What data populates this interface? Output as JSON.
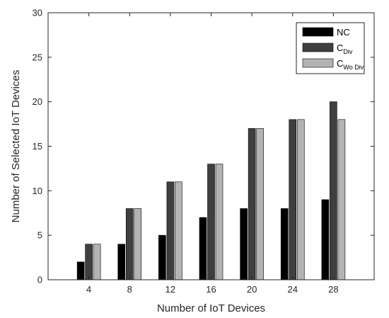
{
  "chart_data": {
    "type": "bar",
    "title": "",
    "xlabel": "Number of IoT Devices",
    "ylabel": "Number of Selected IoT Devices",
    "categories": [
      "4",
      "8",
      "12",
      "16",
      "20",
      "24",
      "28"
    ],
    "x": [
      4,
      8,
      12,
      16,
      20,
      24,
      28
    ],
    "xlim": [
      0,
      32
    ],
    "ylim": [
      0,
      30
    ],
    "yticks": [
      0,
      5,
      10,
      15,
      20,
      25,
      30
    ],
    "grid": false,
    "legend_position": "top-right",
    "series": [
      {
        "name": "NC",
        "name_main": "NC",
        "name_sub": "",
        "color": "#000000",
        "values": [
          2,
          4,
          5,
          7,
          8,
          8,
          9
        ]
      },
      {
        "name": "C Div",
        "name_main": "C",
        "name_sub": "Div",
        "color": "#3f3f3f",
        "values": [
          4,
          8,
          11,
          13,
          17,
          18,
          20
        ]
      },
      {
        "name": "C Wo Div",
        "name_main": "C",
        "name_sub": "Wo Div",
        "color": "#b3b3b3",
        "values": [
          4,
          8,
          11,
          13,
          17,
          18,
          18
        ]
      }
    ]
  }
}
